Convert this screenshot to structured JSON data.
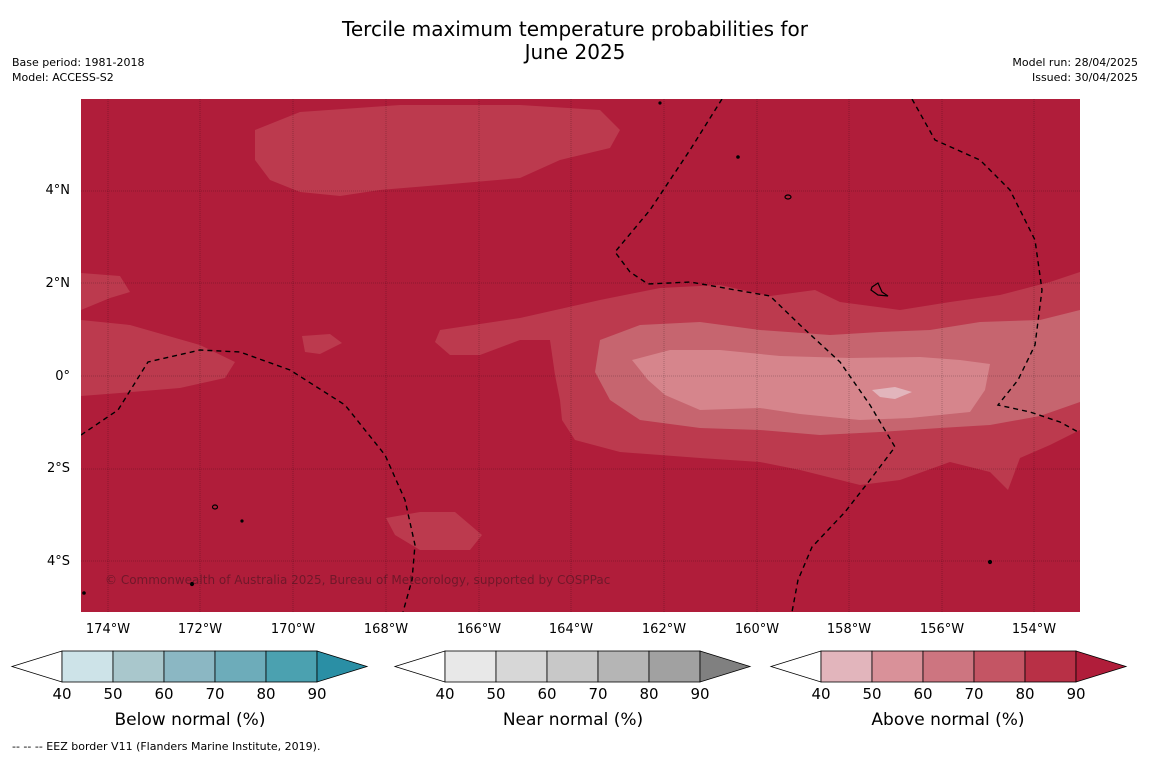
{
  "title_line1": "Tercile maximum temperature probabilities for",
  "title_line2": "June 2025",
  "base_period": "Base period: 1981-2018",
  "model": "Model: ACCESS-S2",
  "model_run": "Model run: 28/04/2025",
  "issued": "Issued: 30/04/2025",
  "lat_labels": [
    "4°N",
    "2°N",
    "0°",
    "2°S",
    "4°S"
  ],
  "lon_labels": [
    "174°W",
    "172°W",
    "170°W",
    "168°W",
    "166°W",
    "164°W",
    "162°W",
    "160°W",
    "158°W",
    "156°W",
    "154°W"
  ],
  "copyright": "© Commonwealth of Australia 2025, Bureau of Meteorology, supported by COSPPac",
  "colorbar_ticks": [
    "40",
    "50",
    "60",
    "70",
    "80",
    "90"
  ],
  "colorbars": [
    {
      "title": "Below normal (%)",
      "colors": [
        "#ffffff",
        "#cde3e8",
        "#a9c7cc",
        "#8bb7c3",
        "#6dacba",
        "#4ba1b0",
        "#2a8fa5"
      ]
    },
    {
      "title": "Near normal (%)",
      "colors": [
        "#ffffff",
        "#e8e8e8",
        "#d7d7d7",
        "#c8c8c8",
        "#b5b5b5",
        "#a1a1a1",
        "#808080"
      ]
    },
    {
      "title": "Above normal (%)",
      "colors": [
        "#ffffff",
        "#e2b5bc",
        "#d99199",
        "#cd7580",
        "#c45564",
        "#b83046",
        "#b01d3a"
      ]
    }
  ],
  "footnote": "-- -- -- EEZ border V11 (Flanders Marine Institute, 2019).",
  "map_colors": {
    "base": "#b01d3a",
    "l70": "#bc3a4e",
    "l60": "#c6656f",
    "l50": "#d6858c"
  }
}
